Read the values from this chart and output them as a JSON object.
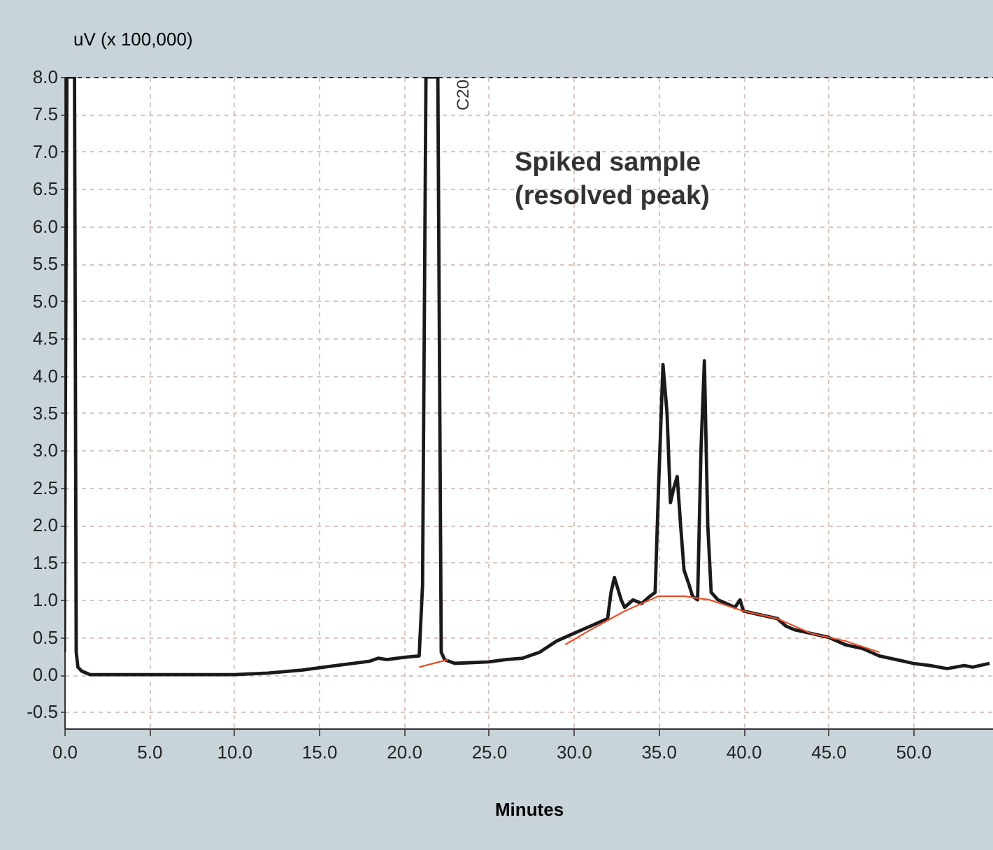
{
  "chart_data": {
    "type": "line",
    "xlabel": "Minutes",
    "ylabel": "uV (x 100,000)",
    "xlim": [
      0,
      54.7
    ],
    "ylim": [
      -0.72,
      8.0
    ],
    "xticks": [
      {
        "value": 0,
        "label": "0.0"
      },
      {
        "value": 5,
        "label": "5.0"
      },
      {
        "value": 10,
        "label": "10.0"
      },
      {
        "value": 15,
        "label": "15.0"
      },
      {
        "value": 20,
        "label": "20.0"
      },
      {
        "value": 25,
        "label": "25.0"
      },
      {
        "value": 30,
        "label": "30.0"
      },
      {
        "value": 35,
        "label": "35.0"
      },
      {
        "value": 40,
        "label": "40.0"
      },
      {
        "value": 45,
        "label": "45.0"
      },
      {
        "value": 50,
        "label": "50.0"
      }
    ],
    "yticks": [
      -0.5,
      {
        "value": 0,
        "label": "0.0"
      },
      0.5,
      {
        "value": 1,
        "label": "1.0"
      },
      1.5,
      {
        "value": 2,
        "label": "2.0"
      },
      2.5,
      {
        "value": 3,
        "label": "3.0"
      },
      3.5,
      {
        "value": 4,
        "label": "4.0"
      },
      4.5,
      {
        "value": 5,
        "label": "5.0"
      },
      5.5,
      {
        "value": 6,
        "label": "6.0"
      },
      6.5,
      {
        "value": 7,
        "label": "7.0"
      },
      7.5,
      {
        "value": 8,
        "label": "8.0"
      }
    ],
    "grid": true,
    "marker": "none",
    "line_style": "solid",
    "series": [
      {
        "color": "#1a1a1a",
        "x": [
          0.0,
          0.15,
          0.6,
          0.7,
          0.8,
          1.0,
          1.5,
          5,
          10,
          12,
          14,
          16,
          18,
          18.5,
          19,
          20,
          20.9,
          21.1,
          21.3,
          22.0,
          22.2,
          22.4,
          23,
          25,
          26,
          27,
          28,
          29,
          30,
          31,
          32,
          32.2,
          32.4,
          32.8,
          33,
          33.5,
          34,
          34.5,
          34.8,
          35.0,
          35.26,
          35.5,
          35.7,
          35.9,
          36.1,
          36.3,
          36.5,
          36.8,
          37.0,
          37.3,
          37.5,
          37.7,
          37.9,
          38.1,
          38.5,
          39,
          39.5,
          39.8,
          40,
          41,
          42,
          42.5,
          43,
          44,
          45,
          46,
          47,
          48,
          49,
          50,
          51,
          52,
          53,
          53.5,
          54.5
        ],
        "values": [
          0.3,
          8.0,
          8.0,
          0.3,
          0.1,
          0.05,
          0.0,
          0.0,
          0.0,
          0.02,
          0.06,
          0.12,
          0.18,
          0.22,
          0.2,
          0.23,
          0.25,
          1.2,
          8.0,
          8.0,
          0.3,
          0.2,
          0.15,
          0.17,
          0.2,
          0.22,
          0.3,
          0.45,
          0.55,
          0.65,
          0.75,
          1.1,
          1.3,
          1.0,
          0.9,
          1.0,
          0.95,
          1.05,
          1.1,
          2.5,
          4.15,
          3.5,
          2.3,
          2.5,
          2.65,
          2.0,
          1.4,
          1.2,
          1.05,
          1.0,
          3.0,
          4.2,
          2.0,
          1.1,
          1.0,
          0.95,
          0.9,
          1.0,
          0.85,
          0.8,
          0.75,
          0.65,
          0.6,
          0.55,
          0.5,
          0.4,
          0.35,
          0.25,
          0.2,
          0.15,
          0.12,
          0.08,
          0.12,
          0.1,
          0.15
        ]
      },
      {
        "color": "#e8502a",
        "x": [
          20.9,
          22.6
        ],
        "values": [
          0.1,
          0.2
        ]
      },
      {
        "color": "#e8502a",
        "x": [
          29.5,
          31,
          33,
          34,
          35,
          36.5,
          38,
          40,
          42,
          44,
          46,
          48
        ],
        "values": [
          0.4,
          0.6,
          0.85,
          0.95,
          1.05,
          1.05,
          1.0,
          0.85,
          0.75,
          0.55,
          0.45,
          0.3
        ]
      }
    ],
    "annotations": [
      "C20",
      "Spiked sample\n(resolved peak)"
    ]
  }
}
